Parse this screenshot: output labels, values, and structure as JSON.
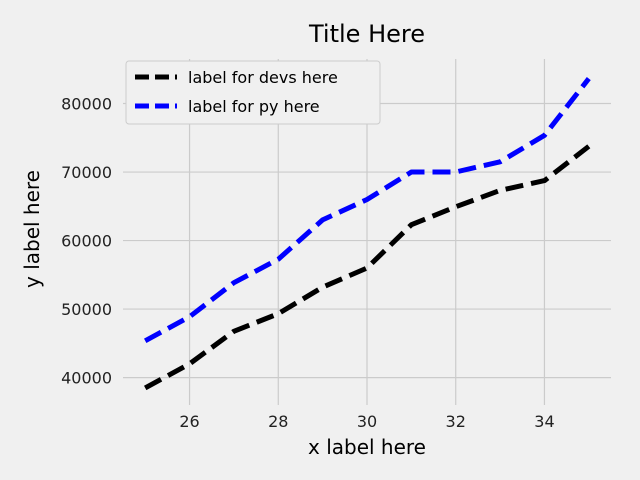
{
  "chart_data": {
    "type": "line",
    "title": "Title Here",
    "xlabel": "x label here",
    "ylabel": "y label here",
    "xlim": [
      24.5,
      35.5
    ],
    "ylim": [
      36000,
      86500
    ],
    "xticks": [
      26,
      28,
      30,
      32,
      34
    ],
    "yticks": [
      40000,
      50000,
      60000,
      70000,
      80000
    ],
    "grid": true,
    "legend_position": "top-left",
    "x": [
      25,
      26,
      27,
      28,
      29,
      30,
      31,
      32,
      33,
      34,
      35
    ],
    "series": [
      {
        "name": "label for devs here",
        "color": "#000000",
        "line_style": "dashed",
        "values": [
          38496,
          42000,
          46752,
          49320,
          53200,
          56000,
          62316,
          64928,
          67317,
          68748,
          73752
        ]
      },
      {
        "name": "label for py here",
        "color": "#0000ff",
        "line_style": "dashed",
        "values": [
          45372,
          48876,
          53850,
          57287,
          63016,
          65998,
          70003,
          70000,
          71496,
          75370,
          83640
        ]
      }
    ]
  }
}
